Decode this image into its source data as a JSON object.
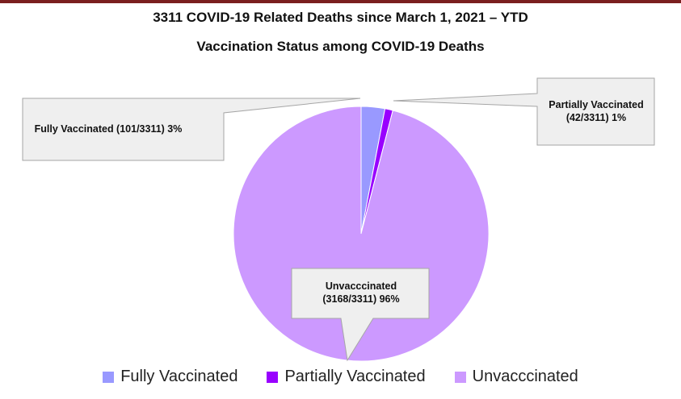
{
  "chart_data": {
    "type": "pie",
    "title": "3311 COVID-19 Related Deaths since March 1, 2021 – YTD",
    "subtitle": "Vaccination Status among COVID-19 Deaths",
    "categories": [
      "Fully Vaccinated",
      "Partially Vaccinated",
      "Unvacccinated"
    ],
    "values": [
      3,
      1,
      96
    ],
    "value_labels": [
      "Fully Vaccinated (101/3311) 3%",
      "Partially Vaccinated (42/3311) 1%",
      "Unvacccinated (3168/3311) 96%"
    ],
    "colors": [
      "#9999ff",
      "#9900ff",
      "#cc99ff"
    ]
  }
}
